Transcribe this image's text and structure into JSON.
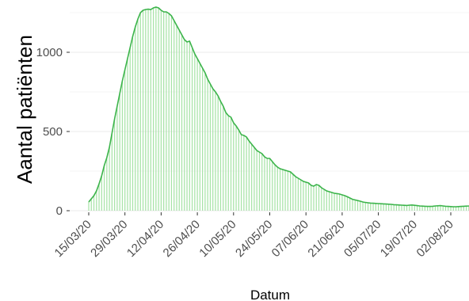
{
  "chart_data": {
    "type": "bar",
    "title": "",
    "xlabel": "Datum",
    "ylabel": "Aantal patiënten",
    "x_start": "2020-03-15",
    "x_ticks": [
      "15/03/20",
      "29/03/20",
      "12/04/20",
      "26/04/20",
      "10/05/20",
      "24/05/20",
      "07/06/20",
      "21/06/20",
      "05/07/20",
      "19/07/20",
      "02/08/20"
    ],
    "y_ticks": [
      0,
      500,
      1000
    ],
    "ylim": [
      0,
      1300
    ],
    "grid": true,
    "colors": {
      "line": "#3cb44b",
      "bars": "#a6e3a6",
      "grid": "#ebebeb",
      "axis_text": "#4d4d4d"
    },
    "values": [
      55,
      75,
      95,
      125,
      170,
      220,
      285,
      335,
      400,
      490,
      580,
      660,
      740,
      820,
      890,
      960,
      1030,
      1100,
      1160,
      1210,
      1250,
      1265,
      1270,
      1272,
      1270,
      1280,
      1285,
      1280,
      1265,
      1255,
      1255,
      1245,
      1230,
      1200,
      1170,
      1140,
      1110,
      1080,
      1065,
      1070,
      1030,
      990,
      960,
      930,
      900,
      870,
      830,
      800,
      770,
      750,
      725,
      690,
      660,
      620,
      600,
      590,
      555,
      535,
      510,
      480,
      475,
      465,
      440,
      420,
      400,
      380,
      370,
      360,
      340,
      330,
      330,
      310,
      290,
      275,
      265,
      260,
      255,
      250,
      245,
      230,
      215,
      205,
      195,
      185,
      180,
      175,
      160,
      155,
      165,
      160,
      145,
      135,
      125,
      120,
      115,
      110,
      108,
      105,
      100,
      95,
      88,
      80,
      72,
      68,
      64,
      60,
      55,
      52,
      50,
      48,
      47,
      46,
      45,
      44,
      43,
      42,
      41,
      40,
      38,
      37,
      36,
      35,
      34,
      33,
      35,
      36,
      34,
      32,
      30,
      29,
      28,
      27,
      27,
      28,
      30,
      31,
      32,
      30,
      28,
      27,
      26,
      25,
      25,
      26,
      27,
      28,
      29,
      30,
      32,
      34,
      36,
      38,
      40,
      42,
      44,
      46,
      48,
      50,
      52,
      55,
      52,
      50,
      48,
      46,
      48,
      52,
      57,
      60
    ]
  }
}
